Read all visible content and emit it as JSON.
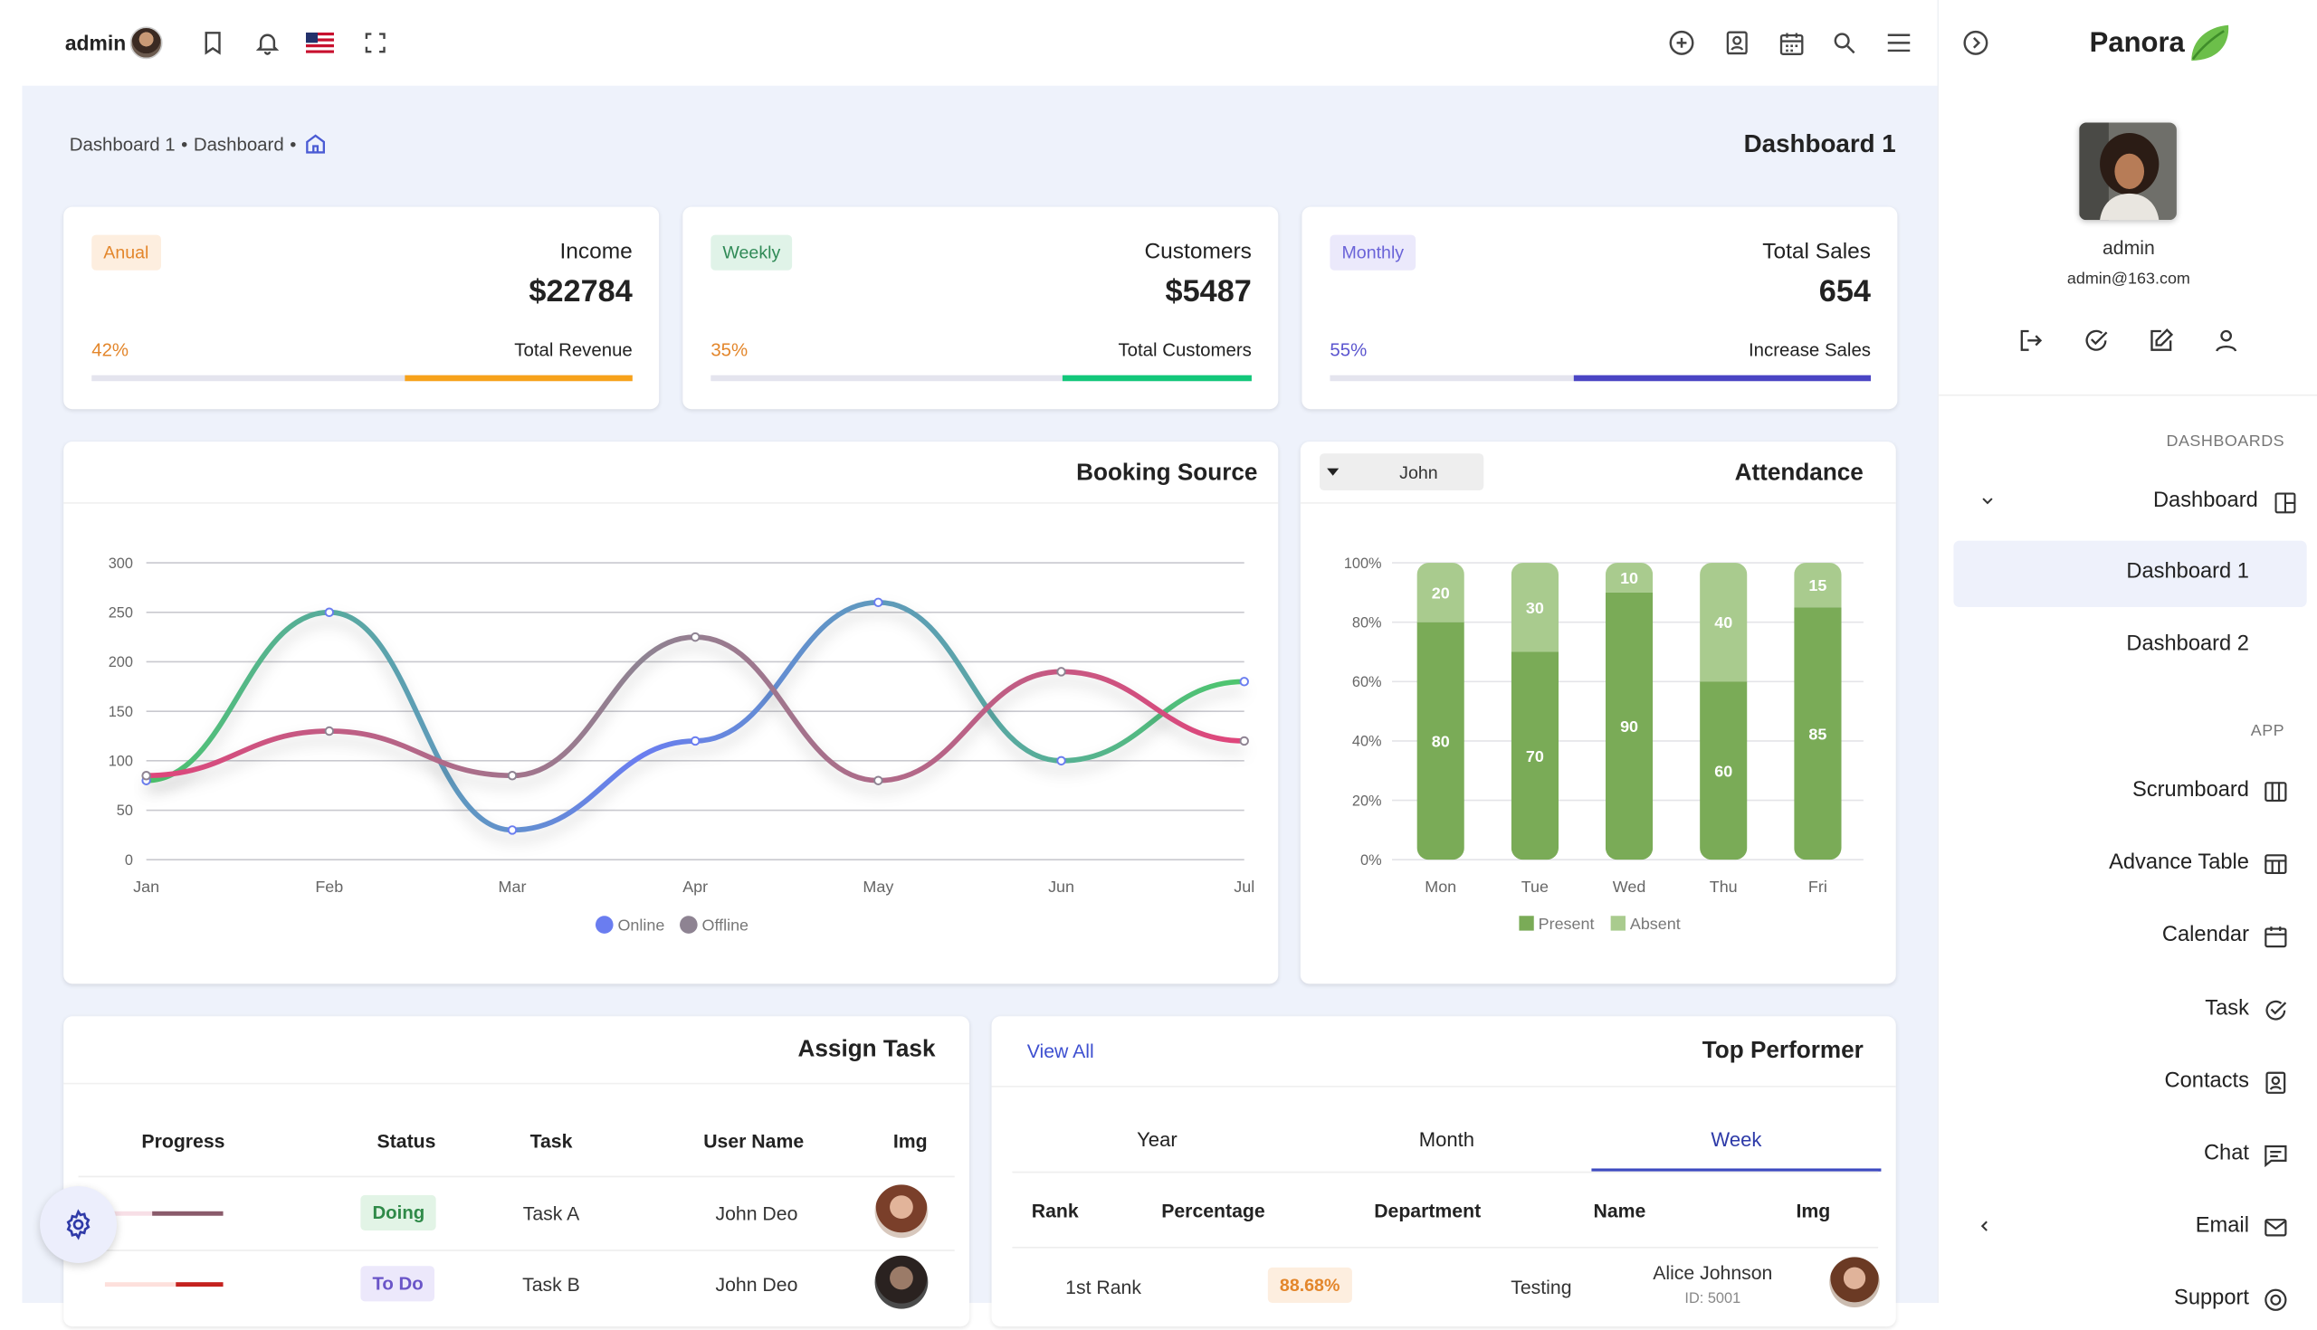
{
  "topbar": {
    "user_label": "admin",
    "flag_icon": "us-flag-icon",
    "left_icons": [
      "bookmark-icon",
      "bell-icon",
      "us-flag-icon",
      "fullscreen-icon"
    ],
    "right_icons": [
      "plus-circle-icon",
      "contact-card-icon",
      "calendar-icon",
      "search-icon",
      "menu-icon",
      "chevron-right-circle-icon"
    ]
  },
  "breadcrumb": {
    "items": [
      "Dashboard 1",
      "Dashboard"
    ],
    "home_icon": "home-icon"
  },
  "page_title": "Dashboard 1",
  "stats": [
    {
      "badge": "Anual",
      "title": "Income",
      "value": "$22784",
      "percent_label": "42%",
      "subtitle": "Total Revenue",
      "progress": 0.42,
      "color": "#f7a21b",
      "badge_bg": "#fdeedf",
      "badge_fg": "#e3862b",
      "pct_color": "#e3862b"
    },
    {
      "badge": "Weekly",
      "title": "Customers",
      "value": "$5487",
      "percent_label": "35%",
      "subtitle": "Total Customers",
      "progress": 0.35,
      "color": "#12c77a",
      "badge_bg": "#e0f3e8",
      "badge_fg": "#2f8a56",
      "pct_color": "#e3862b"
    },
    {
      "badge": "Monthly",
      "title": "Total Sales",
      "value": "654",
      "percent_label": "55%",
      "subtitle": "Increase Sales",
      "progress": 0.55,
      "color": "#4a45c4",
      "badge_bg": "#ebe9fb",
      "badge_fg": "#6a63d8",
      "pct_color": "#5b55cf"
    }
  ],
  "booking": {
    "title": "Booking Source",
    "chart_data": {
      "type": "line",
      "categories": [
        "Jan",
        "Feb",
        "Mar",
        "Apr",
        "May",
        "Jun",
        "Jul"
      ],
      "ylim": [
        0,
        300
      ],
      "yticks": [
        0,
        50,
        100,
        150,
        200,
        250,
        300
      ],
      "series": [
        {
          "name": "Online",
          "values": [
            80,
            250,
            30,
            120,
            260,
            100,
            180
          ],
          "colors": [
            "#4ec66c",
            "#6a7df0"
          ]
        },
        {
          "name": "Offline",
          "values": [
            85,
            130,
            85,
            225,
            80,
            190,
            120
          ],
          "colors": [
            "#e0457b",
            "#8e8392"
          ]
        }
      ],
      "legend": "bottom"
    },
    "legend_colors": [
      "#6a7df0",
      "#8e8392"
    ]
  },
  "attendance": {
    "title": "Attendance",
    "select_value": "John",
    "chart_data": {
      "type": "bar",
      "stacked": true,
      "categories": [
        "Mon",
        "Tue",
        "Wed",
        "Thu",
        "Fri"
      ],
      "ylim": [
        0,
        100
      ],
      "yticks": [
        "0%",
        "20%",
        "40%",
        "60%",
        "80%",
        "100%"
      ],
      "series": [
        {
          "name": "Present",
          "values": [
            80,
            70,
            90,
            60,
            85
          ],
          "color": "#7aab57"
        },
        {
          "name": "Absent",
          "values": [
            20,
            30,
            10,
            40,
            15
          ],
          "color": "#a9cb8e"
        }
      ],
      "legend": "bottom"
    }
  },
  "assign_task": {
    "title": "Assign Task",
    "headers": [
      "Progress",
      "Status",
      "Task",
      "User Name",
      "Img"
    ],
    "rows": [
      {
        "status": "Doing",
        "task": "Task A",
        "user": "John Deo",
        "status_bg": "#e2f4e6",
        "status_fg": "#2f8a48",
        "progress": 0.6,
        "color": "#8a5b6b"
      },
      {
        "status": "To Do",
        "task": "Task B",
        "user": "John Deo",
        "status_bg": "#ece8fb",
        "status_fg": "#6a55c8",
        "progress": 0.4,
        "color": "#c4221f"
      }
    ]
  },
  "top_performer": {
    "title": "Top Performer",
    "view_all": "View All",
    "tabs": [
      "Year",
      "Month",
      "Week"
    ],
    "active_tab": 2,
    "headers": [
      "Rank",
      "Percentage",
      "Department",
      "Name",
      "Img"
    ],
    "rows": [
      {
        "rank": "1st Rank",
        "percentage": "88.68%",
        "department": "Testing",
        "name": "Alice Johnson",
        "id": "ID: 5001"
      }
    ]
  },
  "sidebar": {
    "brand": "Panora",
    "user_name": "admin",
    "user_email": "admin@163.com",
    "profile_actions": [
      "logout-icon",
      "check-circle-icon",
      "edit-icon",
      "user-icon"
    ],
    "section_dashboards": "DASHBOARDS",
    "dashboard_label": "Dashboard",
    "sub_items": [
      "Dashboard 1",
      "Dashboard 2"
    ],
    "section_app": "APP",
    "app_items": [
      {
        "label": "Scrumboard",
        "icon": "columns-icon"
      },
      {
        "label": "Advance Table",
        "icon": "table-icon"
      },
      {
        "label": "Calendar",
        "icon": "calendar-icon"
      },
      {
        "label": "Task",
        "icon": "check-circle-icon"
      },
      {
        "label": "Contacts",
        "icon": "contact-card-icon"
      },
      {
        "label": "Chat",
        "icon": "chat-icon"
      },
      {
        "label": "Email",
        "icon": "mail-icon"
      },
      {
        "label": "Support",
        "icon": "support-icon"
      }
    ]
  }
}
